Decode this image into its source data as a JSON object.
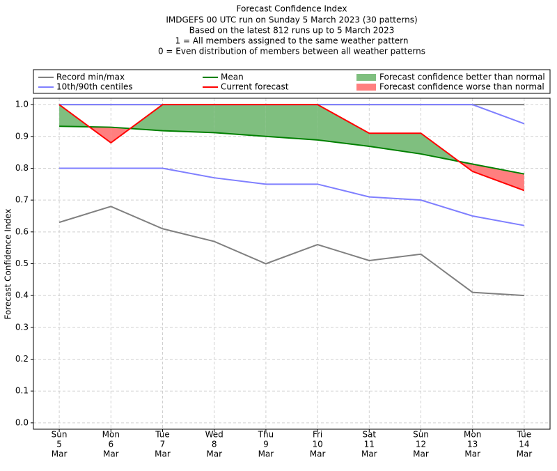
{
  "chart_data": {
    "type": "line",
    "title": "Forecast Confidence Index",
    "subtitle": [
      "IMDGEFS 00 UTC run on Sunday 5 March 2023 (30 patterns)",
      "Based on the latest 812 runs up to 5 March 2023",
      "1 = All members assigned to the same weather pattern",
      "0 = Even distribution of members between all weather patterns"
    ],
    "y_label": "Forecast Confidence Index",
    "categories": [
      [
        "Sun",
        "5",
        "Mar"
      ],
      [
        "Mon",
        "6",
        "Mar"
      ],
      [
        "Tue",
        "7",
        "Mar"
      ],
      [
        "Wed",
        "8",
        "Mar"
      ],
      [
        "Thu",
        "9",
        "Mar"
      ],
      [
        "Fri",
        "10",
        "Mar"
      ],
      [
        "Sat",
        "11",
        "Mar"
      ],
      [
        "Sun",
        "12",
        "Mar"
      ],
      [
        "Mon",
        "13",
        "Mar"
      ],
      [
        "Tue",
        "14",
        "Mar"
      ]
    ],
    "series": [
      {
        "name": "Record min/max",
        "color": "#808080",
        "lower": [
          0.63,
          0.68,
          0.61,
          0.57,
          0.5,
          0.56,
          0.51,
          0.53,
          0.41,
          0.4
        ],
        "upper": [
          1,
          1,
          1,
          1,
          1,
          1,
          1,
          1,
          1,
          1
        ]
      },
      {
        "name": "10th/90th centiles",
        "color": "#7f7fff",
        "lower": [
          0.8,
          0.8,
          0.8,
          0.77,
          0.75,
          0.75,
          0.71,
          0.7,
          0.65,
          0.62
        ],
        "upper": [
          1,
          1,
          1,
          1,
          1,
          1,
          1,
          1,
          1,
          0.94
        ]
      },
      {
        "name": "Mean",
        "color": "#008000",
        "values": [
          0.932,
          0.929,
          0.918,
          0.912,
          0.9,
          0.889,
          0.869,
          0.845,
          0.813,
          0.782
        ]
      },
      {
        "name": "Current forecast",
        "color": "#ff0000",
        "values": [
          1.0,
          0.88,
          1.0,
          1.0,
          1.0,
          1.0,
          0.91,
          0.91,
          0.79,
          0.73
        ]
      }
    ],
    "fills": [
      {
        "name": "Forecast confidence better than normal",
        "color": "#7fbf7f"
      },
      {
        "name": "Forecast confidence worse than normal",
        "color": "#ff7f7f"
      }
    ],
    "ylim": [
      -0.02,
      1.02
    ],
    "yticks": [
      {
        "value": 0,
        "label": "0.0"
      },
      0.1,
      0.2,
      0.3,
      0.4,
      0.5,
      0.6,
      0.7,
      0.8,
      0.9,
      {
        "value": 1,
        "label": "1.0"
      }
    ],
    "grid": true
  }
}
